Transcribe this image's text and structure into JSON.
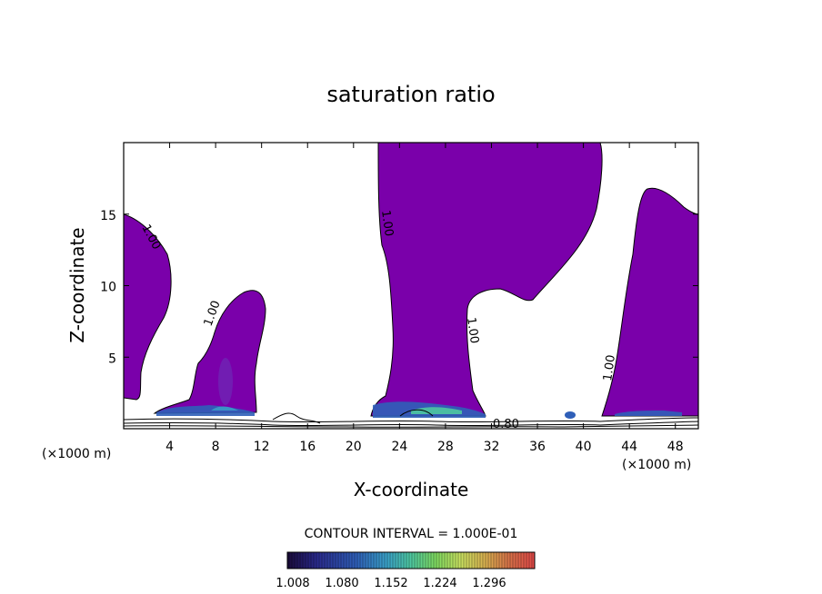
{
  "chart_data": {
    "type": "contour",
    "title": "saturation ratio",
    "xlabel": "X-coordinate",
    "ylabel": "Z-coordinate",
    "x_unit": "(×1000 m)",
    "y_unit": "(×1000 m)",
    "xlim": [
      0,
      50
    ],
    "ylim": [
      0,
      20
    ],
    "x_ticks": [
      4,
      8,
      12,
      16,
      20,
      24,
      28,
      32,
      36,
      40,
      44,
      48
    ],
    "y_ticks": [
      5,
      10,
      15
    ],
    "contour_interval_text": "CONTOUR INTERVAL = 1.000E-01",
    "contour_labels": [
      "1.00",
      "1.00",
      "1.00",
      "1.00",
      "1.00",
      "0.80"
    ],
    "colorbar": {
      "tick_labels": [
        "1.008",
        "1.080",
        "1.152",
        "1.224",
        "1.296"
      ],
      "colors": [
        "#1a0a3a",
        "#2a2a8c",
        "#2f5fb8",
        "#3aa0c8",
        "#4ec8a0",
        "#7ed860",
        "#c8e060",
        "#d8b050",
        "#d87048",
        "#e04848"
      ]
    },
    "fill_color": "#7a00aa",
    "grid": false
  }
}
